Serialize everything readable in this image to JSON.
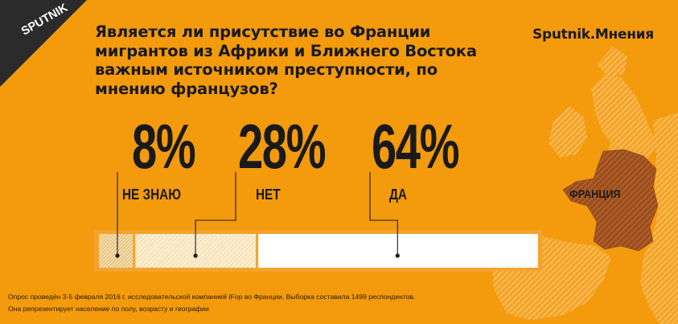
{
  "header": {
    "logo_text": "SPUTNIK",
    "title": "Является ли присутствие во Франции мигрантов из Африки и Ближнего Востока важным источником преступности, по мнению французов?",
    "brand": "Sputnik.Мнения"
  },
  "map": {
    "country_label": "ФРАНЦИЯ"
  },
  "chart_data": {
    "type": "bar",
    "orientation": "horizontal-stacked",
    "categories": [
      "НЕ ЗНАЮ",
      "НЕТ",
      "ДА"
    ],
    "values": [
      8,
      28,
      64
    ],
    "value_labels": [
      "8%",
      "28%",
      "64%"
    ],
    "unit": "%",
    "xlim": [
      0,
      100
    ]
  },
  "footer": {
    "line1": "Опрос проведён 3-5 февраля 2016 г. исследовательской компанией IFop во Франции. Выборка составила 1499 респондентов.",
    "line2": "Она репрезентирует население по полу, возрасту и географии"
  },
  "colors": {
    "background": "#f39b0d",
    "dark": "#1a1a1a",
    "bar_white": "#ffffff",
    "hatch_light": "#f7e3b5",
    "map_land": "#f7b447",
    "france": "#a1521c"
  }
}
